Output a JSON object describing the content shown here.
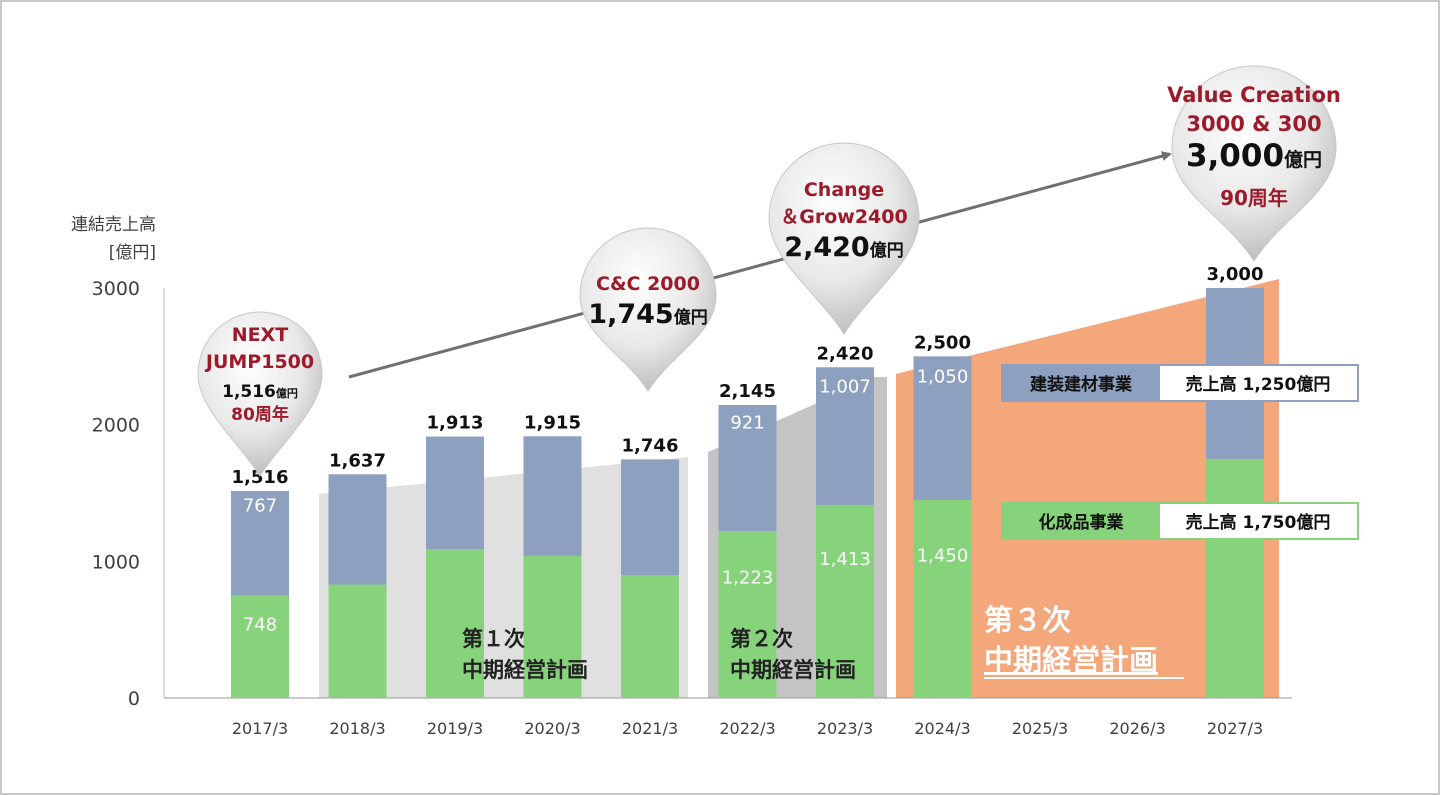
{
  "chart_data": {
    "type": "bar",
    "stacked": true,
    "ylabel_line1": "連結売上高",
    "ylabel_line2": "[億円]",
    "ylim": [
      0,
      3000
    ],
    "yticks": [
      0,
      1000,
      2000,
      3000
    ],
    "categories": [
      "2017/3",
      "2018/3",
      "2019/3",
      "2020/3",
      "2021/3",
      "2022/3",
      "2023/3",
      "2024/3",
      "2025/3",
      "2026/3",
      "2027/3"
    ],
    "series": [
      {
        "name": "化成品事業",
        "color": "#87d37c",
        "values": [
          748,
          830,
          1090,
          1040,
          900,
          1223,
          1413,
          1450,
          null,
          null,
          1750
        ],
        "labels": [
          "748",
          "",
          "",
          "",
          "",
          "1,223",
          "1,413",
          "1,450",
          "",
          "",
          ""
        ]
      },
      {
        "name": "建装建材事業",
        "color": "#8da0c0",
        "values": [
          767,
          807,
          823,
          875,
          846,
          921,
          1007,
          1050,
          null,
          null,
          1250
        ],
        "labels": [
          "767",
          "",
          "",
          "",
          "",
          "921",
          "1,007",
          "1,050",
          "",
          "",
          ""
        ]
      }
    ],
    "totals": [
      "1,516",
      "1,637",
      "1,913",
      "1,915",
      "1,746",
      "2,145",
      "2,420",
      "2,500",
      "",
      "",
      "3,000"
    ],
    "legend": [
      {
        "name": "建装建材事業",
        "value": "売上高 1,250億円",
        "color": "#8da0c0"
      },
      {
        "name": "化成品事業",
        "value": "売上高 1,750億円",
        "color": "#87d37c"
      }
    ],
    "phases": [
      {
        "line1": "第１次",
        "line2": "中期経営計画",
        "color": "#e0e0e0"
      },
      {
        "line1": "第２次",
        "line2": "中期経営計画",
        "color": "#c4c4c4"
      },
      {
        "line1": "第３次",
        "line2": "中期経営計画",
        "color": "#f4a77a"
      }
    ],
    "milestones": [
      {
        "name_lines": [
          "NEXT",
          "JUMP1500"
        ],
        "amount": "1,516",
        "unit": "億円",
        "anniversary": "80周年"
      },
      {
        "name_lines": [
          "C&C 2000"
        ],
        "amount": "1,745",
        "unit": "億円",
        "anniversary": ""
      },
      {
        "name_lines": [
          "Change",
          "＆Grow2400"
        ],
        "amount": "2,420",
        "unit": "億円",
        "anniversary": ""
      },
      {
        "name_lines": [
          "Value Creation",
          "3000 & 300"
        ],
        "amount": "3,000",
        "unit": "億円",
        "anniversary": "90周年"
      }
    ],
    "colors": {
      "milestone_title": "#9c1a2a",
      "arrow": "#707070"
    }
  }
}
